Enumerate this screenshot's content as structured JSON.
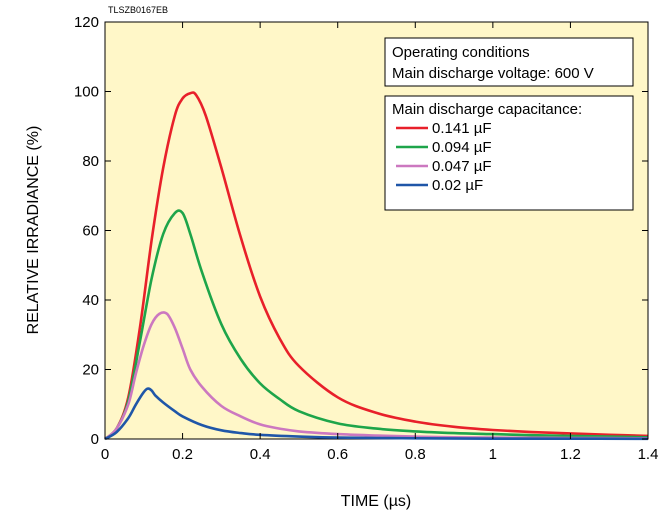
{
  "chart_data": {
    "type": "line",
    "figure_code": "TLSZB0167EB",
    "xlabel": "TIME (µs)",
    "ylabel": "RELATIVE IRRADIANCE  (%)",
    "xlim": [
      0,
      1.4
    ],
    "ylim": [
      0,
      120
    ],
    "xticks": [
      "0",
      "0.2",
      "0.4",
      "0.6",
      "0.8",
      "1",
      "1.2",
      "1.4"
    ],
    "yticks": [
      "0",
      "20",
      "40",
      "60",
      "80",
      "100",
      "120"
    ],
    "grid": false,
    "plot_background": "#fff7c8",
    "conditions": {
      "title": "Operating conditions",
      "voltage": "Main discharge voltage: 600 V"
    },
    "legend_title": "Main discharge capacitance:",
    "legend_placement": "top-right",
    "series": [
      {
        "name": "0.141 µF",
        "color": "#e8202a",
        "x": [
          0,
          0.03,
          0.06,
          0.09,
          0.12,
          0.15,
          0.18,
          0.2,
          0.22,
          0.235,
          0.26,
          0.3,
          0.35,
          0.4,
          0.45,
          0.5,
          0.6,
          0.7,
          0.8,
          0.9,
          1.0,
          1.1,
          1.2,
          1.3,
          1.4
        ],
        "y": [
          0,
          3,
          12,
          32,
          57,
          78,
          93,
          98,
          99.5,
          99,
          93,
          78,
          58,
          41,
          29,
          21,
          12,
          7.5,
          5,
          3.5,
          2.6,
          2,
          1.6,
          1.2,
          0.9
        ]
      },
      {
        "name": "0.094 µF",
        "color": "#1ea54a",
        "x": [
          0,
          0.03,
          0.06,
          0.09,
          0.12,
          0.15,
          0.18,
          0.2,
          0.22,
          0.25,
          0.3,
          0.35,
          0.4,
          0.45,
          0.5,
          0.6,
          0.7,
          0.8,
          0.9,
          1.0,
          1.1,
          1.2,
          1.3,
          1.4
        ],
        "y": [
          0,
          3,
          11,
          28,
          46,
          59,
          65,
          65,
          59,
          48,
          33,
          23,
          16,
          11.5,
          8,
          4.5,
          3,
          2.2,
          1.7,
          1.4,
          1.1,
          0.9,
          0.7,
          0.5
        ]
      },
      {
        "name": "0.047 µF",
        "color": "#cc78c0",
        "x": [
          0,
          0.03,
          0.06,
          0.08,
          0.1,
          0.12,
          0.14,
          0.16,
          0.18,
          0.2,
          0.22,
          0.25,
          0.3,
          0.35,
          0.4,
          0.45,
          0.5,
          0.6,
          0.7,
          0.8,
          0.9,
          1.0,
          1.2,
          1.4
        ],
        "y": [
          0,
          3,
          10,
          19,
          27,
          33,
          36,
          36,
          32,
          26,
          20,
          15,
          9.5,
          6.5,
          4.2,
          3,
          2.2,
          1.4,
          1,
          0.7,
          0.5,
          0.4,
          0.3,
          0.2
        ]
      },
      {
        "name": "0.02 µF",
        "color": "#1f56a8",
        "x": [
          0,
          0.03,
          0.06,
          0.08,
          0.1,
          0.11,
          0.12,
          0.13,
          0.15,
          0.18,
          0.2,
          0.25,
          0.3,
          0.35,
          0.4,
          0.5,
          0.6,
          0.8,
          1.0,
          1.2,
          1.4
        ],
        "y": [
          0,
          2,
          6,
          10,
          13.5,
          14.5,
          14,
          12.5,
          10.5,
          8,
          6.5,
          4,
          2.5,
          1.7,
          1.2,
          0.7,
          0.4,
          0.2,
          0.1,
          0.1,
          0.05
        ]
      }
    ]
  }
}
